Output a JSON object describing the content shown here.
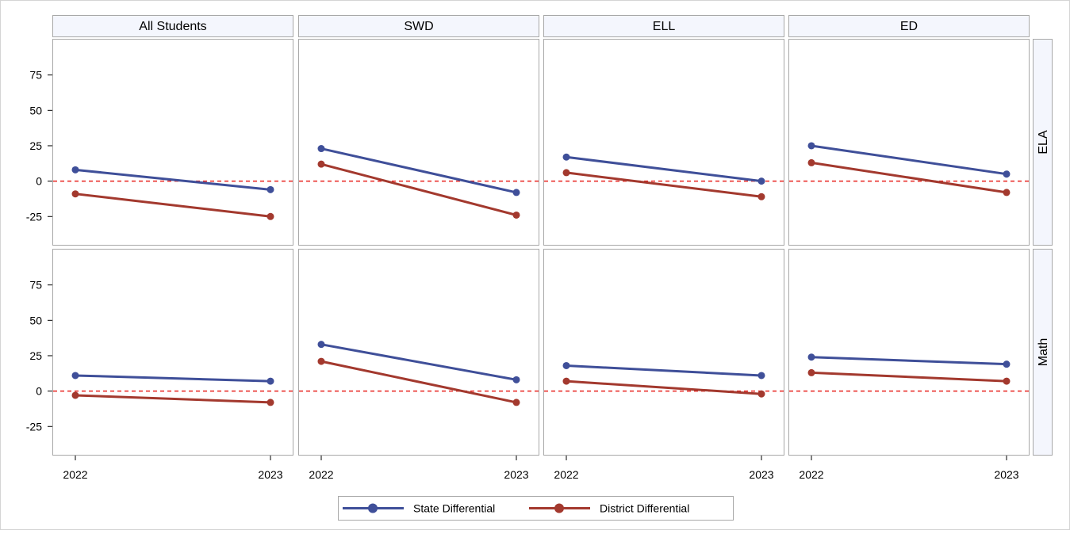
{
  "chart_data": {
    "type": "line",
    "columns": [
      "All Students",
      "SWD",
      "ELL",
      "ED"
    ],
    "rows": [
      "ELA",
      "Math"
    ],
    "x": [
      "2022",
      "2023"
    ],
    "y_ticks": [
      75,
      50,
      25,
      0,
      -25
    ],
    "ylim": [
      -45,
      100
    ],
    "reference_line": {
      "y": 0,
      "color": "#e8231f",
      "style": "dashed"
    },
    "legend": {
      "position": "bottom",
      "entries": [
        "State Differential",
        "District Differential"
      ]
    },
    "series": [
      {
        "name": "State Differential",
        "color": "#3f4f99"
      },
      {
        "name": "District Differential",
        "color": "#a3392e"
      }
    ],
    "panels": [
      {
        "column": "All Students",
        "row": "ELA",
        "state": [
          8,
          -6
        ],
        "district": [
          -9,
          -25
        ]
      },
      {
        "column": "SWD",
        "row": "ELA",
        "state": [
          23,
          -8
        ],
        "district": [
          12,
          -24
        ]
      },
      {
        "column": "ELL",
        "row": "ELA",
        "state": [
          17,
          0
        ],
        "district": [
          6,
          -11
        ]
      },
      {
        "column": "ED",
        "row": "ELA",
        "state": [
          25,
          5
        ],
        "district": [
          13,
          -8
        ]
      },
      {
        "column": "All Students",
        "row": "Math",
        "state": [
          11,
          7
        ],
        "district": [
          -3,
          -8
        ]
      },
      {
        "column": "SWD",
        "row": "Math",
        "state": [
          33,
          8
        ],
        "district": [
          21,
          -8
        ]
      },
      {
        "column": "ELL",
        "row": "Math",
        "state": [
          18,
          11
        ],
        "district": [
          7,
          -2
        ]
      },
      {
        "column": "ED",
        "row": "Math",
        "state": [
          24,
          19
        ],
        "district": [
          13,
          7
        ]
      }
    ]
  }
}
